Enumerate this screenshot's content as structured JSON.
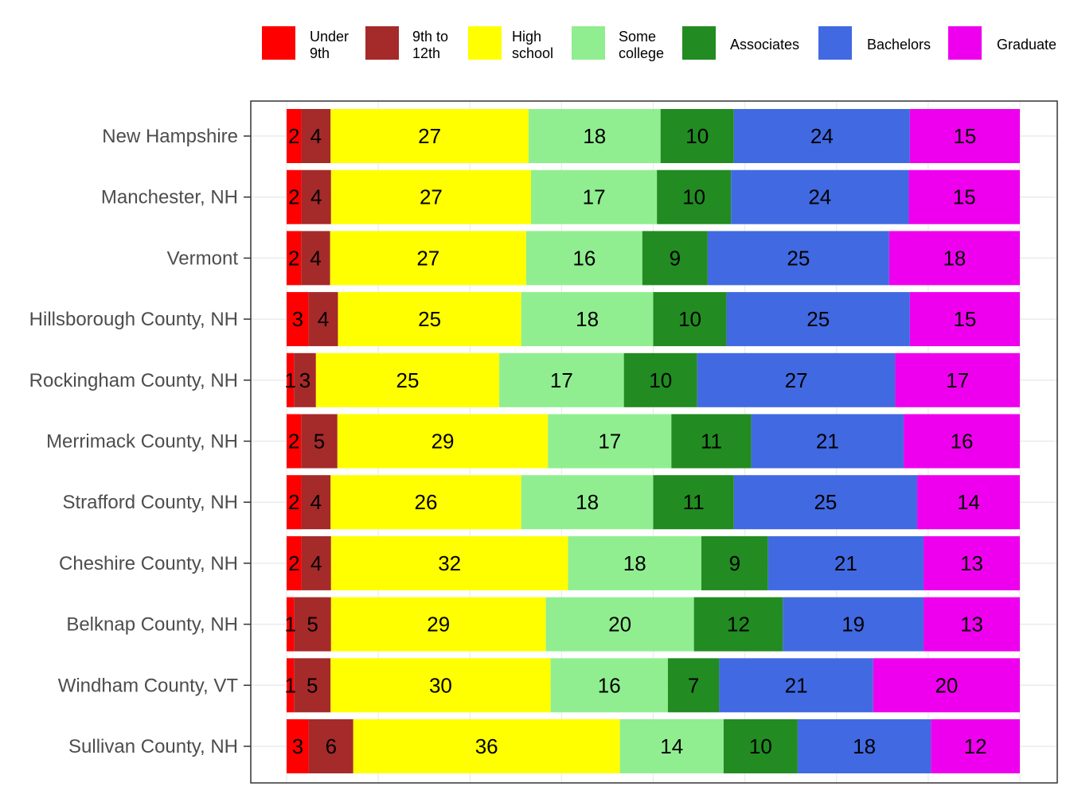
{
  "chart_data": {
    "type": "bar",
    "orientation": "horizontal",
    "stacked": true,
    "normalized_percent": true,
    "title": "",
    "xlabel": "",
    "ylabel": "",
    "xlim": [
      0,
      100
    ],
    "grid": true,
    "legend_position": "top",
    "categories": [
      "New Hampshire",
      "Manchester, NH",
      "Vermont",
      "Hillsborough County, NH",
      "Rockingham County, NH",
      "Merrimack County, NH",
      "Strafford County, NH",
      "Cheshire County, NH",
      "Belknap County, NH",
      "Windham County, VT",
      "Sullivan County, NH"
    ],
    "series": [
      {
        "name": "Under 9th",
        "legend_lines": [
          "Under",
          "9th"
        ],
        "color": "#ff0000",
        "values": [
          2,
          2,
          2,
          3,
          1,
          2,
          2,
          2,
          1,
          1,
          3
        ],
        "labels": [
          "2",
          "2",
          "2",
          "3",
          "1",
          "2",
          "2",
          "2",
          "1",
          "1",
          "3"
        ]
      },
      {
        "name": "9th to 12th",
        "legend_lines": [
          "9th to",
          "12th"
        ],
        "color": "#a52a2a",
        "values": [
          4,
          4,
          4,
          4,
          3,
          5,
          4,
          4,
          5,
          5,
          6
        ],
        "labels": [
          "4",
          "4",
          "4",
          "4",
          "3",
          "5",
          "4",
          "4",
          "5",
          "5",
          "6"
        ]
      },
      {
        "name": "High school",
        "legend_lines": [
          "High",
          "school"
        ],
        "color": "#ffff00",
        "values": [
          27,
          27,
          27,
          25,
          25,
          29,
          26,
          32,
          29,
          30,
          36
        ],
        "labels": [
          "27",
          "27",
          "27",
          "25",
          "25",
          "29",
          "26",
          "32",
          "29",
          "30",
          "36"
        ]
      },
      {
        "name": "Some college",
        "legend_lines": [
          "Some",
          "college"
        ],
        "color": "#90ee90",
        "values": [
          18,
          17,
          16,
          18,
          17,
          17,
          18,
          18,
          20,
          16,
          14
        ],
        "labels": [
          "18",
          "17",
          "16",
          "18",
          "17",
          "17",
          "18",
          "18",
          "20",
          "16",
          "14"
        ]
      },
      {
        "name": "Associates",
        "legend_lines": [
          "Associates"
        ],
        "color": "#228b22",
        "values": [
          10,
          10,
          9,
          10,
          10,
          11,
          11,
          9,
          12,
          7,
          10
        ],
        "labels": [
          "10",
          "10",
          "9",
          "10",
          "10",
          "11",
          "11",
          "9",
          "12",
          "7",
          "10"
        ]
      },
      {
        "name": "Bachelors",
        "legend_lines": [
          "Bachelors"
        ],
        "color": "#4169e1",
        "values": [
          24,
          24,
          25,
          25,
          27,
          21,
          25,
          21,
          19,
          21,
          18
        ],
        "labels": [
          "24",
          "24",
          "25",
          "25",
          "27",
          "21",
          "25",
          "21",
          "19",
          "21",
          "18"
        ]
      },
      {
        "name": "Graduate",
        "legend_lines": [
          "Graduate"
        ],
        "color": "#ee00ee",
        "values": [
          15,
          15,
          18,
          15,
          17,
          16,
          14,
          13,
          13,
          20,
          12
        ],
        "labels": [
          "15",
          "15",
          "18",
          "15",
          "17",
          "16",
          "14",
          "13",
          "13",
          "20",
          "12"
        ]
      }
    ]
  }
}
